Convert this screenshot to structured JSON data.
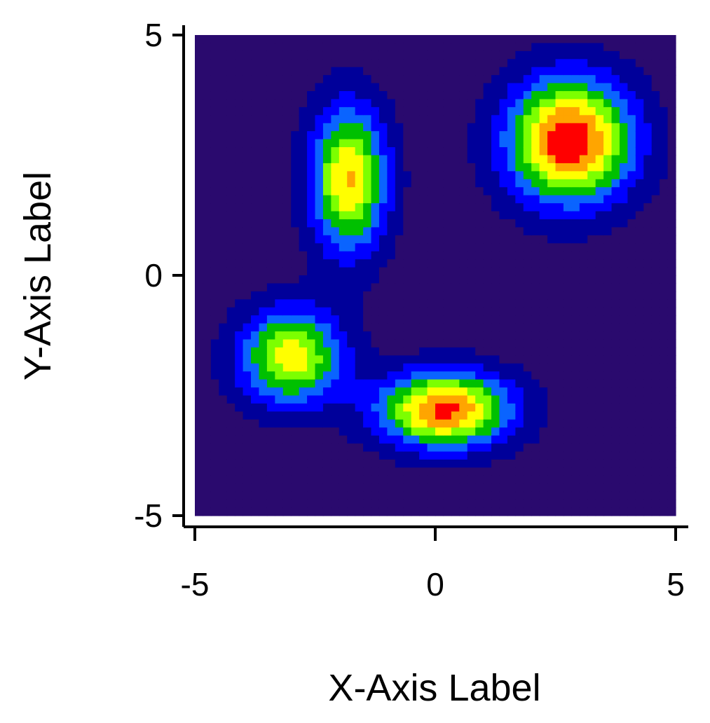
{
  "chart_data": {
    "type": "heatmap",
    "subtype": "filled-contour",
    "title": "",
    "xlabel": "X-Axis Label",
    "ylabel": "Y-Axis Label",
    "xlim": [
      -5,
      5
    ],
    "ylim": [
      -5,
      5
    ],
    "x_ticks": [
      -5,
      0,
      5
    ],
    "y_ticks": [
      -5,
      0,
      5
    ],
    "x_tick_labels": [
      "-5",
      "0",
      "5"
    ],
    "y_tick_labels": [
      "-5",
      "0",
      "5"
    ],
    "grid": false,
    "legend": "none",
    "colormap": [
      "#2a0a6e",
      "#00009a",
      "#0000ff",
      "#0a64ff",
      "#00c000",
      "#7cff00",
      "#ffff00",
      "#ffa500",
      "#ff0000"
    ],
    "peaks": [
      {
        "x": -3.0,
        "y": -1.7,
        "amplitude": 0.72,
        "sx": 0.75,
        "sy": 0.7
      },
      {
        "x": -1.8,
        "y": 2.0,
        "amplitude": 0.78,
        "sx": 0.55,
        "sy": 1.05
      },
      {
        "x": 0.2,
        "y": -2.8,
        "amplitude": 0.92,
        "sx": 0.95,
        "sy": 0.55
      },
      {
        "x": 2.8,
        "y": 2.8,
        "amplitude": 1.0,
        "sx": 0.9,
        "sy": 0.9
      }
    ]
  }
}
